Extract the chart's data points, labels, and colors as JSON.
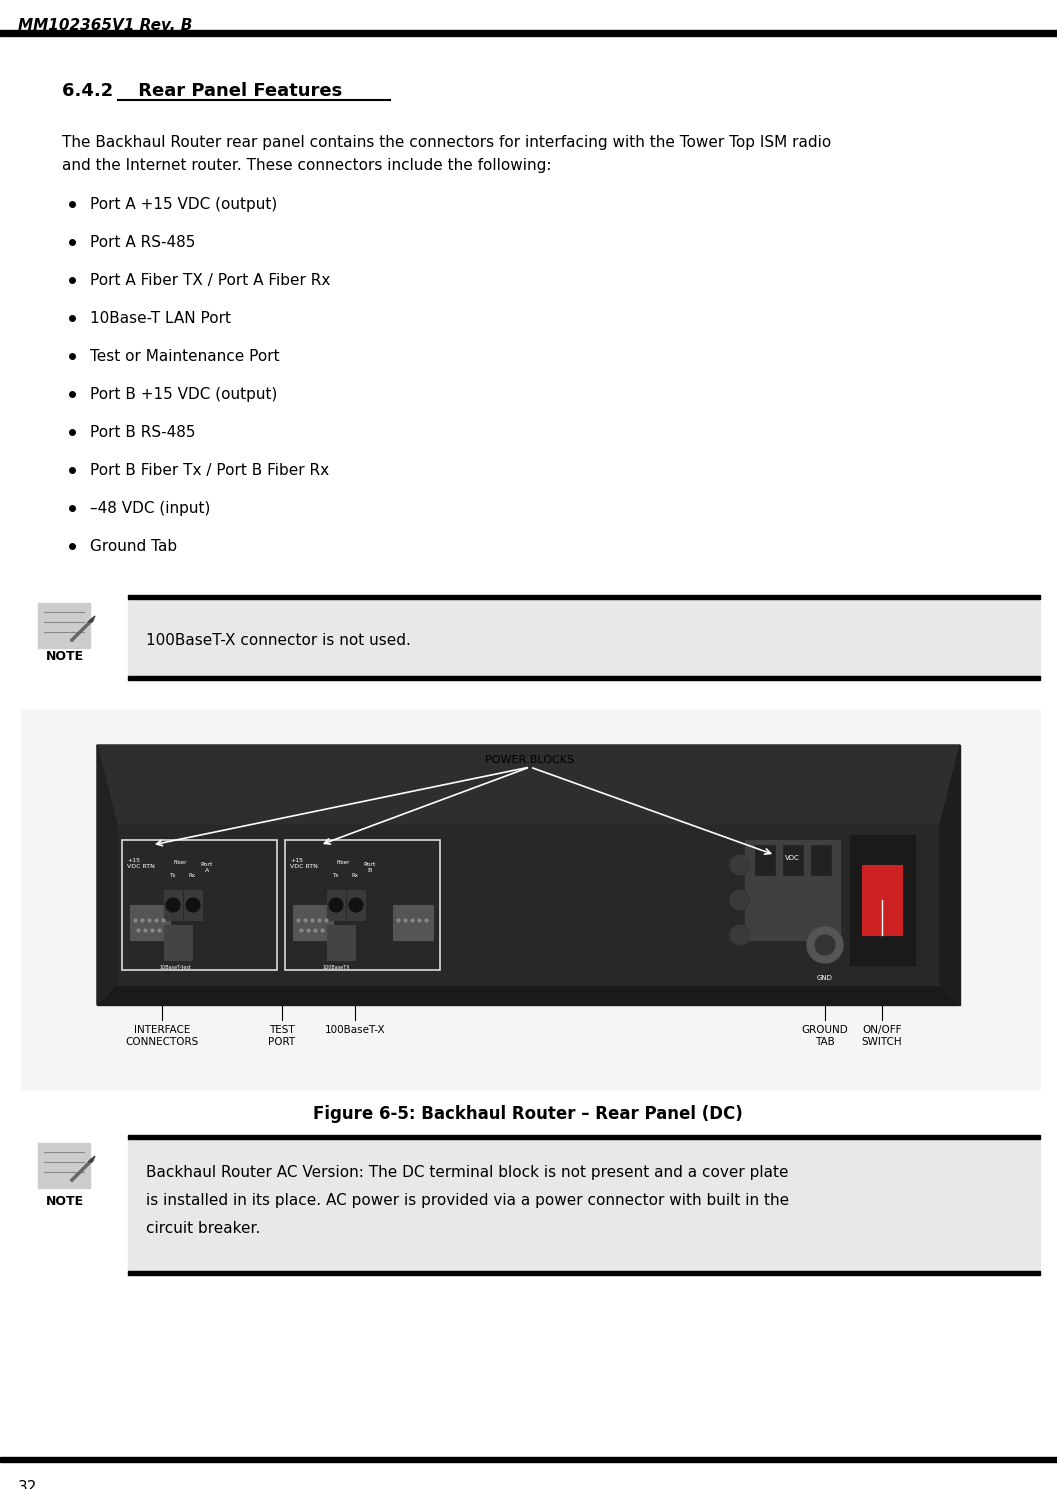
{
  "header_text": "MM102365V1 Rev. B",
  "section_number": "6.4.2",
  "section_title": "Rear Panel Features",
  "body_line1": "The Backhaul Router rear panel contains the connectors for interfacing with the Tower Top ISM radio",
  "body_line2": "and the Internet router. These connectors include the following:",
  "bullet_items": [
    "Port A +15 VDC (output)",
    "Port A RS-485",
    "Port A Fiber TX / Port A Fiber Rx",
    "10Base-T LAN Port",
    "Test or Maintenance Port",
    "Port B +15 VDC (output)",
    "Port B RS-485",
    "Port B Fiber Tx / Port B Fiber Rx",
    "–48 VDC (input)",
    "Ground Tab"
  ],
  "note1_text": "100BaseT-X connector is not used.",
  "figure_caption": "Figure 6-5: Backhaul Router – Rear Panel (DC)",
  "note2_line1": "Backhaul Router AC Version: The DC terminal block is not present and a cover plate",
  "note2_line2": "is installed in its place. AC power is provided via a power connector with built in the",
  "note2_line3": "circuit breaker.",
  "page_number": "32",
  "bg_color": "#ffffff",
  "note_bg_color": "#e8e8e8",
  "text_color": "#000000",
  "panel_dark": "#1e1e1e",
  "panel_face": "#2d2d2d",
  "panel_mid": "#3a3a3a",
  "connector_gray": "#686868",
  "connector_light": "#909090",
  "white_line": "#ffffff"
}
